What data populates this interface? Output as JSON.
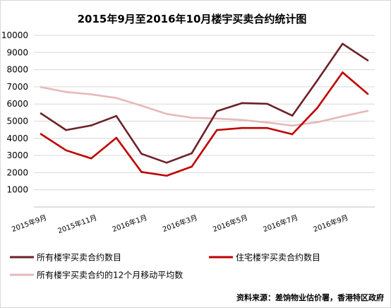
{
  "chart_data": {
    "type": "line",
    "title": "2015年9月至2016年10月楼宇买卖合约统计图",
    "ylim": [
      0,
      10000
    ],
    "yticks": [
      1000,
      2000,
      3000,
      4000,
      5000,
      6000,
      7000,
      8000,
      9000,
      10000
    ],
    "categories": [
      "2015年9月",
      "2015年10月",
      "2015年11月",
      "2015年12月",
      "2016年1月",
      "2016年2月",
      "2016年3月",
      "2016年4月",
      "2016年5月",
      "2016年6月",
      "2016年7月",
      "2016年8月",
      "2016年9月",
      "2016年10月"
    ],
    "tick_labels": [
      "2015年9月",
      "2015年11月",
      "2016年1月",
      "2016年3月",
      "2016年5月",
      "2016年7月",
      "2016年9月"
    ],
    "tick_indices": [
      0,
      2,
      4,
      6,
      8,
      10,
      12
    ],
    "grid": true,
    "legend_position": "bottom",
    "series": [
      {
        "name": "所有楼宇买卖合约数目",
        "color": "#6b2227",
        "values": [
          5450,
          4480,
          4750,
          5300,
          3100,
          2580,
          3130,
          5580,
          6050,
          6010,
          5320,
          7380,
          9510,
          8540
        ]
      },
      {
        "name": "住宅楼宇买卖合约数目",
        "color": "#c00000",
        "values": [
          4250,
          3300,
          2830,
          4030,
          2040,
          1820,
          2350,
          4480,
          4600,
          4600,
          4240,
          5780,
          7840,
          6590
        ]
      },
      {
        "name": "所有楼宇买卖合约的12个月移动平均数",
        "color": "#e6b9b8",
        "values": [
          6980,
          6700,
          6560,
          6350,
          5900,
          5420,
          5200,
          5150,
          5070,
          4920,
          4740,
          4940,
          5280,
          5600
        ]
      }
    ]
  },
  "source_note": "资料来源：差饷物业估价署，香港特区政府"
}
